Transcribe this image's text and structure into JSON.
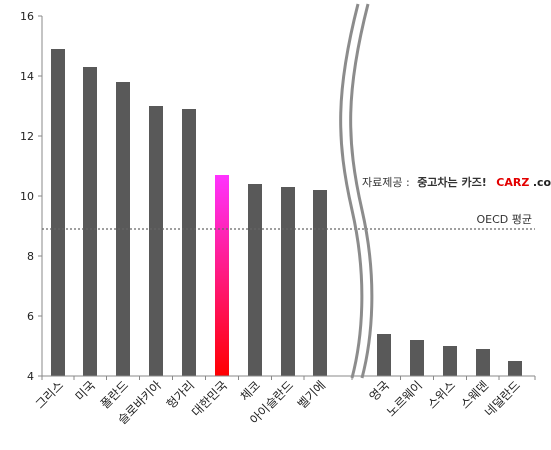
{
  "chart_data": {
    "type": "bar",
    "ylim": [
      4,
      16
    ],
    "yticks": [
      "4",
      "6",
      "8",
      "10",
      "12",
      "14",
      "16"
    ],
    "categories": [
      "그리스",
      "미국",
      "폴란드",
      "슬로바키아",
      "헝가리",
      "대한민국",
      "체코",
      "아이슬란드",
      "벨기에",
      "영국",
      "노르웨이",
      "스위스",
      "스웨덴",
      "네덜란드"
    ],
    "values": [
      14.9,
      14.3,
      13.8,
      13.0,
      12.9,
      10.7,
      10.4,
      10.3,
      10.2,
      5.4,
      5.2,
      5.0,
      4.9,
      4.5
    ],
    "highlight_index": 5,
    "bar_color": "#595959",
    "highlight_gradient": [
      "#ff33ff",
      "#ff0000"
    ],
    "reference_line": {
      "value": 8.9,
      "label": "OECD 평균"
    },
    "axis_break": "between 벨기에 and 영국",
    "grid": false,
    "credit": {
      "prefix": "자료제공 :",
      "source": "중고차는 카즈!",
      "brand_main": "CARZ",
      "brand_suffix": ".co.kr"
    }
  }
}
